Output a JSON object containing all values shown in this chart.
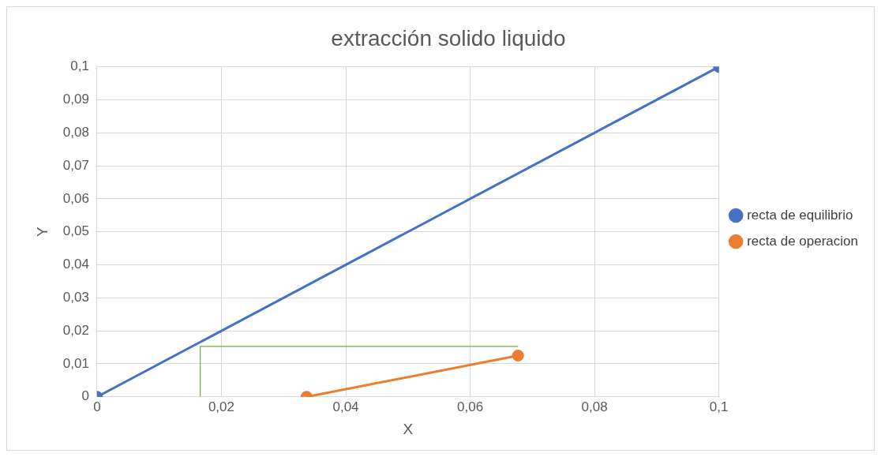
{
  "chart_data": {
    "type": "line",
    "title": "extracción solido liquido",
    "xlabel": "X",
    "ylabel": "Y",
    "xlim": [
      0,
      0.1
    ],
    "xticks": [
      0,
      {
        "value": 0.02,
        "label": "0,02"
      },
      {
        "value": 0.04,
        "label": "0,04"
      },
      {
        "value": 0.06,
        "label": "0,06"
      },
      {
        "value": 0.08,
        "label": "0,08"
      },
      {
        "value": 0.1,
        "label": "0,1"
      }
    ],
    "ylim": [
      0,
      0.1
    ],
    "yticks": [
      0,
      {
        "value": 0.01,
        "label": "0,01"
      },
      {
        "value": 0.02,
        "label": "0,02"
      },
      {
        "value": 0.03,
        "label": "0,03"
      },
      {
        "value": 0.04,
        "label": "0,04"
      },
      {
        "value": 0.05,
        "label": "0,05"
      },
      {
        "value": 0.06,
        "label": "0,06"
      },
      {
        "value": 0.07,
        "label": "0,07"
      },
      {
        "value": 0.08,
        "label": "0,08"
      },
      {
        "value": 0.09,
        "label": "0,09"
      },
      {
        "value": 0.1,
        "label": "0,1"
      }
    ],
    "grid": true,
    "legend": "right",
    "marker": "circle",
    "line_style": "solid",
    "series": [
      {
        "name": "recta de equilibrio",
        "color": "#4472c4",
        "x": [
          0,
          0.1
        ],
        "values": [
          0,
          0.1
        ]
      },
      {
        "name": "recta de operacion",
        "color": "#ed7d31",
        "x": [
          0.0337,
          0.0677
        ],
        "values": [
          0,
          0.0125
        ]
      },
      {
        "color": "#70ad47",
        "x": [
          0.0166,
          0.0166,
          0.0677
        ],
        "values": [
          0,
          0.0153,
          0.0153
        ],
        "marker": "none"
      }
    ]
  }
}
